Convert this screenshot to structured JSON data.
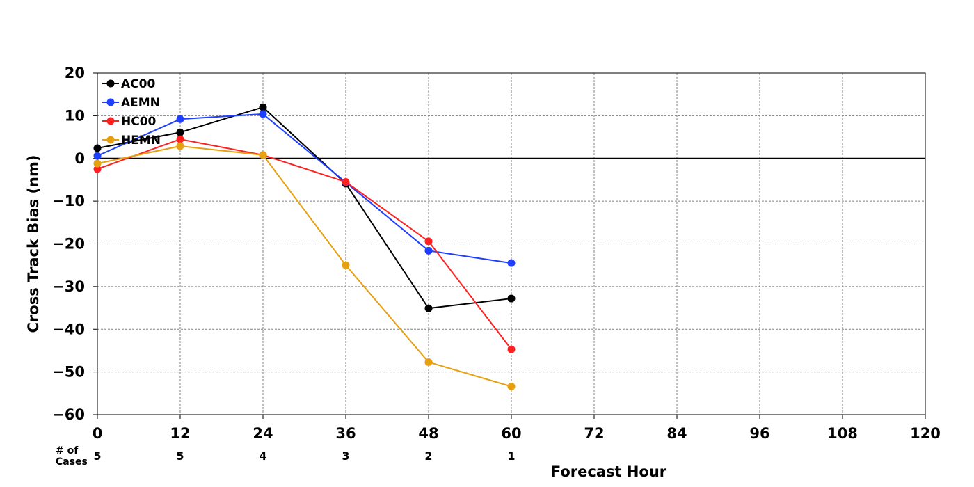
{
  "chart_data": {
    "type": "line",
    "title": "",
    "xlabel": "Forecast Hour",
    "ylabel": "Cross Track Bias (nm)",
    "xlim": [
      0,
      120
    ],
    "ylim": [
      -60,
      20
    ],
    "x_ticks": [
      0,
      12,
      24,
      36,
      48,
      60,
      72,
      84,
      96,
      108,
      120
    ],
    "y_ticks": [
      20,
      10,
      0,
      -10,
      -20,
      -30,
      -40,
      -50,
      -60
    ],
    "x_tick_labels": [
      "0",
      "12",
      "24",
      "36",
      "48",
      "60",
      "72",
      "84",
      "96",
      "108",
      "120"
    ],
    "y_tick_labels": [
      "20",
      "10",
      "0",
      "−10",
      "−20",
      "−30",
      "−40",
      "−50",
      "−60"
    ],
    "grid": true,
    "zero_line": true,
    "legend_position": "top-left",
    "series": [
      {
        "name": "AC00",
        "color": "#000000",
        "x": [
          0,
          12,
          24,
          36,
          48,
          60
        ],
        "y": [
          2.4,
          6.1,
          12.0,
          -5.9,
          -35.1,
          -32.8
        ]
      },
      {
        "name": "AEMN",
        "color": "#1f3fff",
        "x": [
          0,
          12,
          24,
          36,
          48,
          60
        ],
        "y": [
          0.6,
          9.2,
          10.4,
          -5.6,
          -21.6,
          -24.5
        ]
      },
      {
        "name": "HC00",
        "color": "#ff2020",
        "x": [
          0,
          12,
          24,
          36,
          48,
          60
        ],
        "y": [
          -2.5,
          4.5,
          0.8,
          -5.5,
          -19.4,
          -44.7
        ]
      },
      {
        "name": "HEMN",
        "color": "#e6a010",
        "x": [
          0,
          12,
          24,
          36,
          48,
          60
        ],
        "y": [
          -1.2,
          2.9,
          0.8,
          -25.0,
          -47.7,
          -53.4
        ]
      }
    ],
    "cases": {
      "label_line1": "# of",
      "label_line2": "Cases",
      "x": [
        0,
        12,
        24,
        36,
        48,
        60
      ],
      "values": [
        "5",
        "5",
        "4",
        "3",
        "2",
        "1"
      ]
    }
  }
}
